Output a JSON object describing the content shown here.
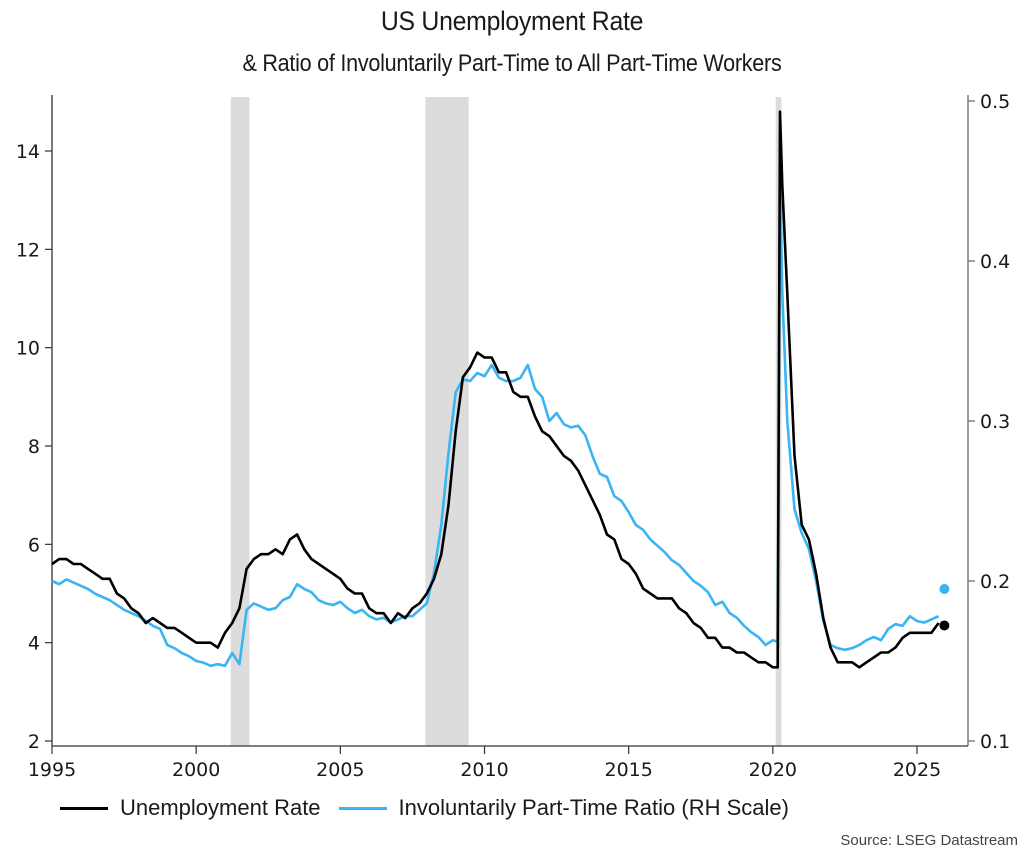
{
  "chart_data": {
    "type": "line",
    "title": "US Unemployment Rate",
    "subtitle": "& Ratio of Involuntarily Part-Time to All Part-Time Workers",
    "xlabel": "",
    "ylabel_left": "",
    "ylabel_right": "",
    "x_ticks": [
      "1995",
      "2000",
      "2005",
      "2010",
      "2015",
      "2020",
      "2025"
    ],
    "y_left_ticks": [
      "2",
      "4",
      "6",
      "8",
      "10",
      "12",
      "14"
    ],
    "y_right_ticks": [
      "0.1",
      "0.2",
      "0.3",
      "0.4",
      "0.5"
    ],
    "ylim_left": [
      2,
      15.1
    ],
    "ylim_right": [
      0.1,
      0.5
    ],
    "xlim": [
      1995,
      2026.5
    ],
    "grid": false,
    "legend_position": "bottom-left",
    "recession_bands": [
      {
        "start": 2001.2,
        "end": 2001.85
      },
      {
        "start": 2007.95,
        "end": 2009.45
      },
      {
        "start": 2020.1,
        "end": 2020.3
      }
    ],
    "series": [
      {
        "name": "Unemployment Rate",
        "axis": "left",
        "color": "#000000",
        "x": [
          1995.0,
          1995.25,
          1995.5,
          1995.75,
          1996.0,
          1996.25,
          1996.5,
          1996.75,
          1997.0,
          1997.25,
          1997.5,
          1997.75,
          1998.0,
          1998.25,
          1998.5,
          1998.75,
          1999.0,
          1999.25,
          1999.5,
          1999.75,
          2000.0,
          2000.25,
          2000.5,
          2000.75,
          2001.0,
          2001.25,
          2001.5,
          2001.75,
          2002.0,
          2002.25,
          2002.5,
          2002.75,
          2003.0,
          2003.25,
          2003.5,
          2003.75,
          2004.0,
          2004.25,
          2004.5,
          2004.75,
          2005.0,
          2005.25,
          2005.5,
          2005.75,
          2006.0,
          2006.25,
          2006.5,
          2006.75,
          2007.0,
          2007.25,
          2007.5,
          2007.75,
          2008.0,
          2008.25,
          2008.5,
          2008.75,
          2009.0,
          2009.25,
          2009.5,
          2009.75,
          2010.0,
          2010.25,
          2010.5,
          2010.75,
          2011.0,
          2011.25,
          2011.5,
          2011.75,
          2012.0,
          2012.25,
          2012.5,
          2012.75,
          2013.0,
          2013.25,
          2013.5,
          2013.75,
          2014.0,
          2014.25,
          2014.5,
          2014.75,
          2015.0,
          2015.25,
          2015.5,
          2015.75,
          2016.0,
          2016.25,
          2016.5,
          2016.75,
          2017.0,
          2017.25,
          2017.5,
          2017.75,
          2018.0,
          2018.25,
          2018.5,
          2018.75,
          2019.0,
          2019.25,
          2019.5,
          2019.75,
          2020.0,
          2020.17,
          2020.25,
          2020.33,
          2020.5,
          2020.75,
          2021.0,
          2021.25,
          2021.5,
          2021.75,
          2022.0,
          2022.25,
          2022.5,
          2022.75,
          2023.0,
          2023.25,
          2023.5,
          2023.75,
          2024.0,
          2024.25,
          2024.5,
          2024.75,
          2025.0,
          2025.25,
          2025.5,
          2025.75
        ],
        "values": [
          5.6,
          5.7,
          5.7,
          5.6,
          5.6,
          5.5,
          5.4,
          5.3,
          5.3,
          5.0,
          4.9,
          4.7,
          4.6,
          4.4,
          4.5,
          4.4,
          4.3,
          4.3,
          4.2,
          4.1,
          4.0,
          4.0,
          4.0,
          3.9,
          4.2,
          4.4,
          4.7,
          5.5,
          5.7,
          5.8,
          5.8,
          5.9,
          5.8,
          6.1,
          6.2,
          5.9,
          5.7,
          5.6,
          5.5,
          5.4,
          5.3,
          5.1,
          5.0,
          5.0,
          4.7,
          4.6,
          4.6,
          4.4,
          4.6,
          4.5,
          4.7,
          4.8,
          5.0,
          5.3,
          5.8,
          6.8,
          8.3,
          9.4,
          9.6,
          9.9,
          9.8,
          9.8,
          9.5,
          9.5,
          9.1,
          9.0,
          9.0,
          8.6,
          8.3,
          8.2,
          8.0,
          7.8,
          7.7,
          7.5,
          7.2,
          6.9,
          6.6,
          6.2,
          6.1,
          5.7,
          5.6,
          5.4,
          5.1,
          5.0,
          4.9,
          4.9,
          4.9,
          4.7,
          4.6,
          4.4,
          4.3,
          4.1,
          4.1,
          3.9,
          3.9,
          3.8,
          3.8,
          3.7,
          3.6,
          3.6,
          3.5,
          3.5,
          14.8,
          13.3,
          11.1,
          7.8,
          6.4,
          6.1,
          5.4,
          4.5,
          3.9,
          3.6,
          3.6,
          3.6,
          3.5,
          3.6,
          3.7,
          3.8,
          3.8,
          3.9,
          4.1,
          4.2,
          4.2,
          4.2,
          4.2,
          4.4
        ]
      },
      {
        "name": "Involuntarily Part-Time Ratio (RH Scale)",
        "axis": "right",
        "color": "#3ab4f2",
        "x": [
          1995.0,
          1995.25,
          1995.5,
          1995.75,
          1996.0,
          1996.25,
          1996.5,
          1996.75,
          1997.0,
          1997.25,
          1997.5,
          1997.75,
          1998.0,
          1998.25,
          1998.5,
          1998.75,
          1999.0,
          1999.25,
          1999.5,
          1999.75,
          2000.0,
          2000.25,
          2000.5,
          2000.75,
          2001.0,
          2001.25,
          2001.5,
          2001.75,
          2002.0,
          2002.25,
          2002.5,
          2002.75,
          2003.0,
          2003.25,
          2003.5,
          2003.75,
          2004.0,
          2004.25,
          2004.5,
          2004.75,
          2005.0,
          2005.25,
          2005.5,
          2005.75,
          2006.0,
          2006.25,
          2006.5,
          2006.75,
          2007.0,
          2007.25,
          2007.5,
          2007.75,
          2008.0,
          2008.25,
          2008.5,
          2008.75,
          2009.0,
          2009.25,
          2009.5,
          2009.75,
          2010.0,
          2010.25,
          2010.5,
          2010.75,
          2011.0,
          2011.25,
          2011.5,
          2011.75,
          2012.0,
          2012.25,
          2012.5,
          2012.75,
          2013.0,
          2013.25,
          2013.5,
          2013.75,
          2014.0,
          2014.25,
          2014.5,
          2014.75,
          2015.0,
          2015.25,
          2015.5,
          2015.75,
          2016.0,
          2016.25,
          2016.5,
          2016.75,
          2017.0,
          2017.25,
          2017.5,
          2017.75,
          2018.0,
          2018.25,
          2018.5,
          2018.75,
          2019.0,
          2019.25,
          2019.5,
          2019.75,
          2020.0,
          2020.17,
          2020.25,
          2020.33,
          2020.5,
          2020.75,
          2021.0,
          2021.25,
          2021.5,
          2021.75,
          2022.0,
          2022.25,
          2022.5,
          2022.75,
          2023.0,
          2023.25,
          2023.5,
          2023.75,
          2024.0,
          2024.25,
          2024.5,
          2024.75,
          2025.0,
          2025.25,
          2025.5,
          2025.75
        ],
        "values": [
          0.2,
          0.198,
          0.201,
          0.199,
          0.197,
          0.195,
          0.192,
          0.19,
          0.188,
          0.185,
          0.182,
          0.18,
          0.178,
          0.175,
          0.172,
          0.17,
          0.16,
          0.158,
          0.155,
          0.153,
          0.15,
          0.149,
          0.147,
          0.148,
          0.147,
          0.155,
          0.148,
          0.182,
          0.186,
          0.184,
          0.182,
          0.183,
          0.188,
          0.19,
          0.198,
          0.195,
          0.193,
          0.188,
          0.186,
          0.185,
          0.187,
          0.183,
          0.18,
          0.182,
          0.178,
          0.176,
          0.177,
          0.174,
          0.176,
          0.178,
          0.178,
          0.182,
          0.186,
          0.205,
          0.235,
          0.28,
          0.318,
          0.326,
          0.325,
          0.33,
          0.328,
          0.335,
          0.327,
          0.325,
          0.325,
          0.327,
          0.335,
          0.32,
          0.315,
          0.3,
          0.305,
          0.298,
          0.296,
          0.297,
          0.291,
          0.278,
          0.267,
          0.265,
          0.253,
          0.25,
          0.243,
          0.235,
          0.232,
          0.226,
          0.222,
          0.218,
          0.213,
          0.21,
          0.205,
          0.2,
          0.197,
          0.193,
          0.185,
          0.187,
          0.18,
          0.177,
          0.172,
          0.168,
          0.165,
          0.16,
          0.163,
          0.162,
          0.46,
          0.38,
          0.3,
          0.245,
          0.23,
          0.22,
          0.2,
          0.175,
          0.16,
          0.158,
          0.157,
          0.158,
          0.16,
          0.163,
          0.165,
          0.163,
          0.17,
          0.173,
          0.172,
          0.178,
          0.175,
          0.174,
          0.176,
          0.178
        ]
      }
    ],
    "end_markers": [
      {
        "series": "Unemployment Rate",
        "x": 2025.95,
        "value": 4.35
      },
      {
        "series": "Involuntarily Part-Time Ratio (RH Scale)",
        "x": 2025.95,
        "value": 0.195
      }
    ],
    "source": "Source: LSEG Datastream"
  },
  "legend": {
    "items": [
      {
        "label": "Unemployment Rate",
        "color": "#000000"
      },
      {
        "label": "Involuntarily Part-Time Ratio (RH Scale)",
        "color": "#3ab4f2"
      }
    ]
  },
  "colors": {
    "recession": "#dcdcdc",
    "axis": "#333333"
  }
}
